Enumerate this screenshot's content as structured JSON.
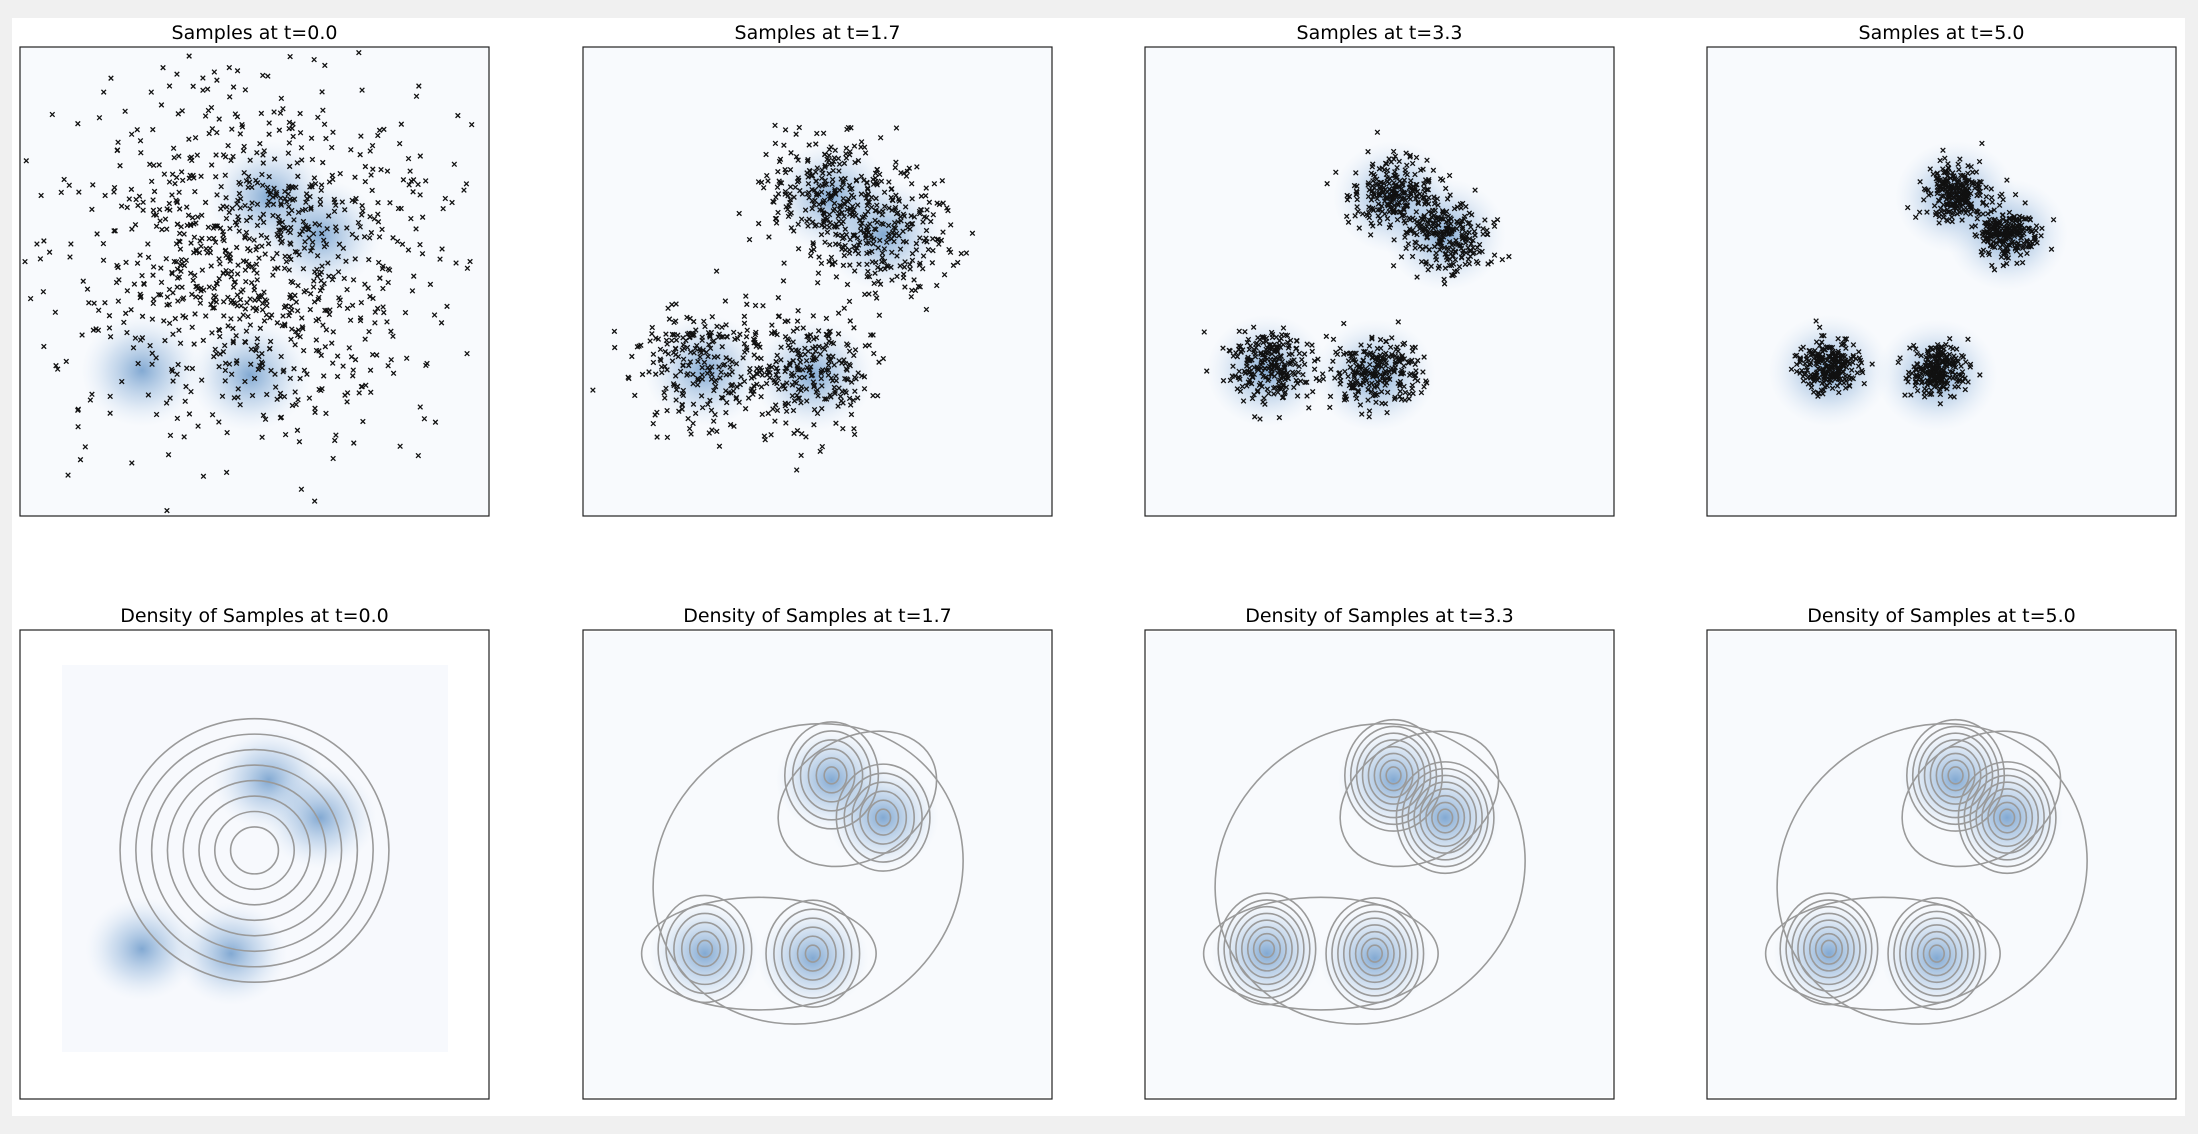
{
  "scatter_panels": [
    {
      "title": "Samples at t=0.0"
    },
    {
      "title": "Samples at t=1.7"
    },
    {
      "title": "Samples at t=3.3"
    },
    {
      "title": "Samples at t=5.0"
    }
  ],
  "density_panels": [
    {
      "title": "Density of Samples at t=0.0"
    },
    {
      "title": "Density of Samples at t=1.7"
    },
    {
      "title": "Density of Samples at t=3.3"
    },
    {
      "title": "Density of Samples at t=5.0"
    }
  ]
}
